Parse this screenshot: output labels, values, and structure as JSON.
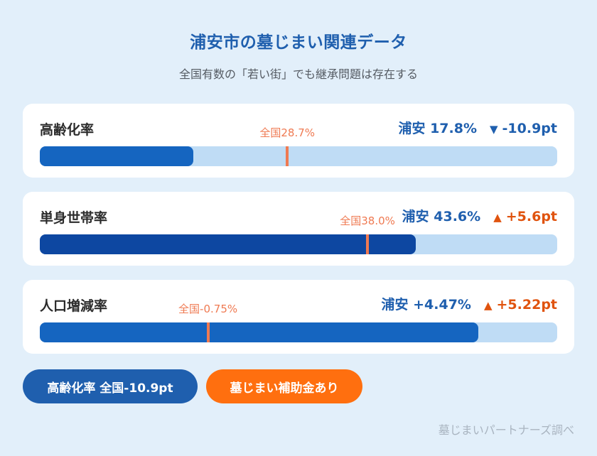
{
  "title": "浦安市の墓じまい関連データ",
  "subtitle": "全国有数の「若い街」でも継承問題は存在する",
  "chart_data": {
    "type": "bar",
    "orientation": "horizontal",
    "title": "浦安市の墓じまい関連データ",
    "subtitle": "全国有数の「若い街」でも継承問題は存在する",
    "metrics": [
      {
        "label": "高齢化率",
        "city_text": "浦安 17.8%",
        "city_value": 17.8,
        "national_text": "全国28.7%",
        "national_value": 28.7,
        "delta_text": "-10.9pt",
        "delta_value": -10.9,
        "direction_symbol": "▼",
        "bar_scale_max": 60,
        "fill_color": "#1565c0",
        "delta_color": "#1f5fae"
      },
      {
        "label": "単身世帯率",
        "city_text": "浦安 43.6%",
        "city_value": 43.6,
        "national_text": "全国38.0%",
        "national_value": 38.0,
        "delta_text": "+5.6pt",
        "delta_value": 5.6,
        "direction_symbol": "▲",
        "bar_scale_max": 60,
        "fill_color": "#0d47a1",
        "delta_color": "#e0530e"
      },
      {
        "label": "人口増減率",
        "city_text": "浦安 +4.47%",
        "city_value": 4.47,
        "national_text": "全国-0.75%",
        "national_value": -0.75,
        "delta_text": "+5.22pt",
        "delta_value": 5.22,
        "direction_symbol": "▲",
        "bar_scale_max": 6,
        "bar_scale_min": -4,
        "fill_color": "#1565c0",
        "delta_color": "#e0530e"
      }
    ]
  },
  "badges": {
    "aging": "高齢化率 全国-10.9pt",
    "subsidy": "墓じまい補助金あり"
  },
  "source": "墓じまいパートナーズ調べ",
  "colors": {
    "background": "#e2effa",
    "track": "#bfdcf5",
    "marker": "#ef7a52",
    "badge_blue": "#1f5fae",
    "badge_orange": "#ff6f0f"
  }
}
